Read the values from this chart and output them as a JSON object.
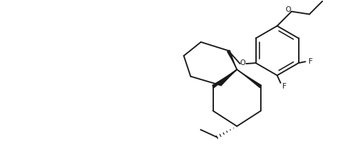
{
  "background": "#ffffff",
  "line_color": "#1a1a1a",
  "line_width": 1.4,
  "figsize": [
    5.26,
    2.14
  ],
  "dpi": 100,
  "xlim": [
    0,
    10.52
  ],
  "ylim": [
    0,
    4.28
  ]
}
